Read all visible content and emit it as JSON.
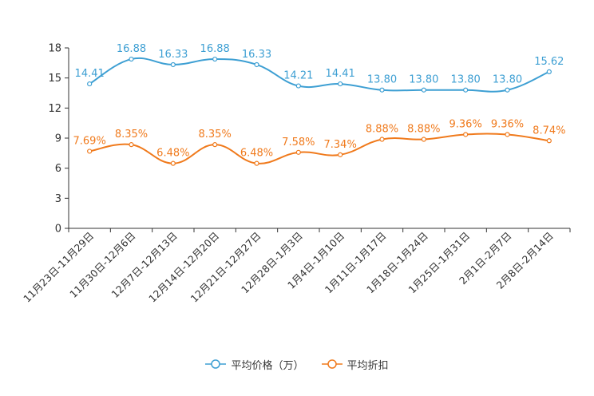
{
  "chart_data": {
    "type": "line",
    "title": "",
    "xlabel": "",
    "ylabel": "",
    "ylim": [
      0,
      18
    ],
    "yticks": [
      0,
      3,
      6,
      9,
      12,
      15,
      18
    ],
    "categories": [
      "11月23日-11月29日",
      "11月30日-12月6日",
      "12月7日-12月13日",
      "12月14日-12月20日",
      "12月21日-12月27日",
      "12月28日-1月3日",
      "1月4日-1月10日",
      "1月11日-1月17日",
      "1月18日-1月24日",
      "1月25日-1月31日",
      "2月1日-2月7日",
      "2月8日-2月14日"
    ],
    "series": [
      {
        "name": "平均价格（万）",
        "color": "#3d9fd3",
        "values": [
          14.41,
          16.88,
          16.33,
          16.88,
          16.33,
          14.21,
          14.41,
          13.8,
          13.8,
          13.8,
          13.8,
          15.62
        ],
        "labels": [
          "14.41",
          "16.88",
          "16.33",
          "16.88",
          "16.33",
          "14.21",
          "14.41",
          "13.80",
          "13.80",
          "13.80",
          "13.80",
          "15.62"
        ]
      },
      {
        "name": "平均折扣",
        "color": "#f07a1c",
        "values": [
          7.69,
          8.35,
          6.48,
          8.35,
          6.48,
          7.58,
          7.34,
          8.88,
          8.88,
          9.36,
          9.36,
          8.74
        ],
        "labels": [
          "7.69%",
          "8.35%",
          "6.48%",
          "8.35%",
          "6.48%",
          "7.58%",
          "7.34%",
          "8.88%",
          "8.88%",
          "9.36%",
          "9.36%",
          "8.74%"
        ]
      }
    ],
    "legend_position": "bottom-center",
    "grid": false
  }
}
